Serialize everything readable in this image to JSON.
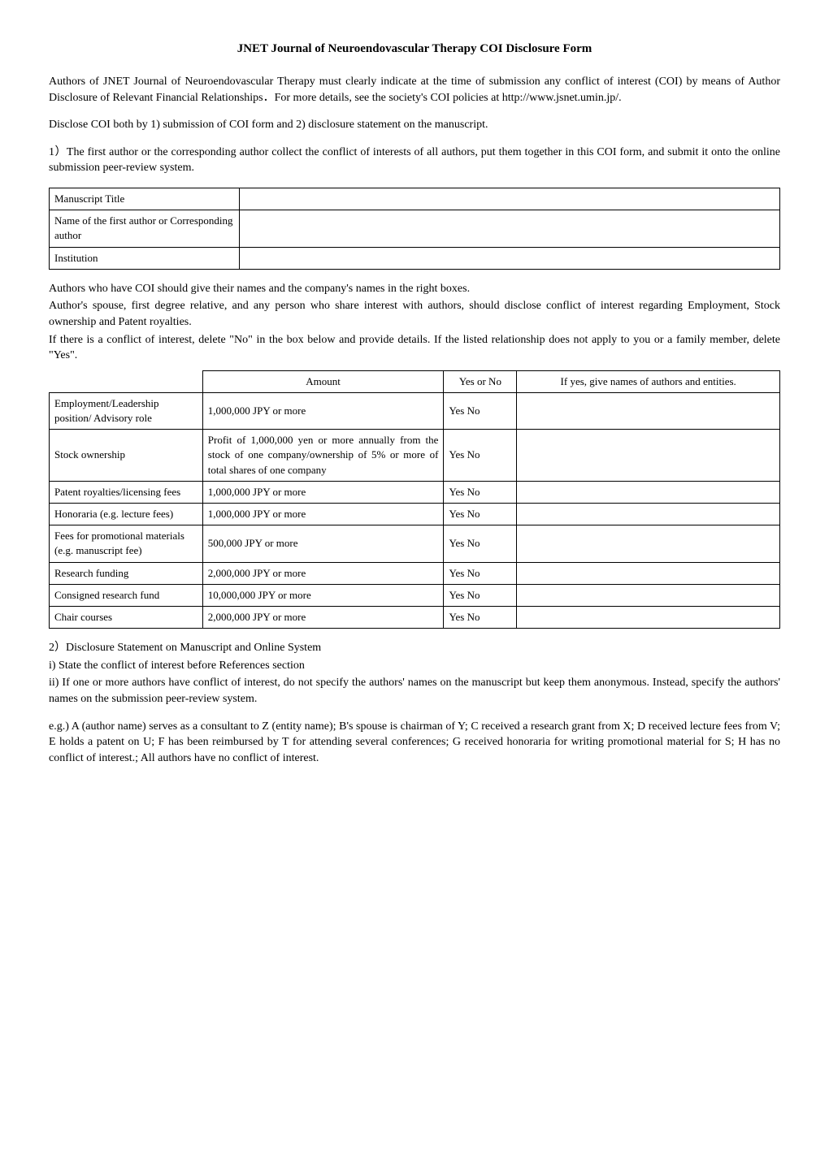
{
  "title": "JNET Journal of Neuroendovascular Therapy COI Disclosure Form",
  "intro": "Authors of JNET Journal of Neuroendovascular Therapy must clearly indicate at the time of submission any conflict of interest (COI) by means of Author Disclosure of Relevant Financial Relationships．For more details, see the society's COI policies at http://www.jsnet.umin.jp/.",
  "disclose_line": "Disclose COI both by 1) submission of COI form and 2) disclosure statement on the manuscript.",
  "step1": "1）The first author or the corresponding author collect the conflict of interests of all authors, put them together in this COI form, and submit it onto the online submission peer-review system.",
  "info_table": {
    "rows": [
      {
        "label": "Manuscript Title",
        "value": ""
      },
      {
        "label": "Name of the first author or Corresponding author",
        "value": ""
      },
      {
        "label": "Institution",
        "value": ""
      }
    ]
  },
  "authors_note1": "Authors who have COI should give their names and the company's names in the right boxes.",
  "authors_note2": "Author's spouse, first degree relative, and any person who share interest with authors, should disclose conflict of interest regarding Employment, Stock ownership and Patent royalties.",
  "authors_note3": "If there is a conflict of interest, delete \"No\" in the box below and provide details. If the listed relationship does not apply to you or a family member, delete \"Yes\".",
  "coi_table": {
    "header": {
      "blank": "",
      "amount": "Amount",
      "yesno": "Yes or No",
      "names": "If yes, give names of authors and entities."
    },
    "rows": [
      {
        "item": "Employment/Leadership position/ Advisory role",
        "amount": "1,000,000 JPY or more",
        "yesno": "Yes No",
        "names": ""
      },
      {
        "item": "Stock ownership",
        "amount": "Profit of 1,000,000 yen or more annually from the stock of one company/ownership of 5% or more of total shares of one company",
        "yesno": "Yes No",
        "names": ""
      },
      {
        "item": "Patent royalties/licensing fees",
        "amount": "1,000,000 JPY or more",
        "yesno": "Yes No",
        "names": ""
      },
      {
        "item": "Honoraria (e.g. lecture fees)",
        "amount": "1,000,000 JPY or more",
        "yesno": "Yes No",
        "names": ""
      },
      {
        "item": "Fees for promotional materials\n(e.g. manuscript fee)",
        "amount": "500,000 JPY or more",
        "yesno": "Yes No",
        "names": ""
      },
      {
        "item": "Research funding",
        "amount": "2,000,000 JPY or more",
        "yesno": "Yes No",
        "names": ""
      },
      {
        "item": "Consigned research fund",
        "amount": "10,000,000 JPY or more",
        "yesno": "Yes No",
        "names": ""
      },
      {
        "item": "Chair courses",
        "amount": "2,000,000 JPY or more",
        "yesno": "Yes No",
        "names": ""
      }
    ]
  },
  "step2": "2）Disclosure Statement on Manuscript and Online System",
  "step2_i": "i) State the conflict of interest before References section",
  "step2_ii": "ii) If one or more authors have conflict of interest, do not specify the authors' names on the manuscript but keep them anonymous. Instead, specify the authors' names on the submission peer-review system.",
  "example": "e.g.) A (author name) serves as a consultant to Z (entity name); B's spouse is chairman of Y; C received a research grant from X; D received lecture fees from V; E holds a patent on U; F has been reimbursed by T for attending several conferences; G received honoraria for writing promotional material for S; H has no conflict of interest.; All authors have no conflict of interest."
}
